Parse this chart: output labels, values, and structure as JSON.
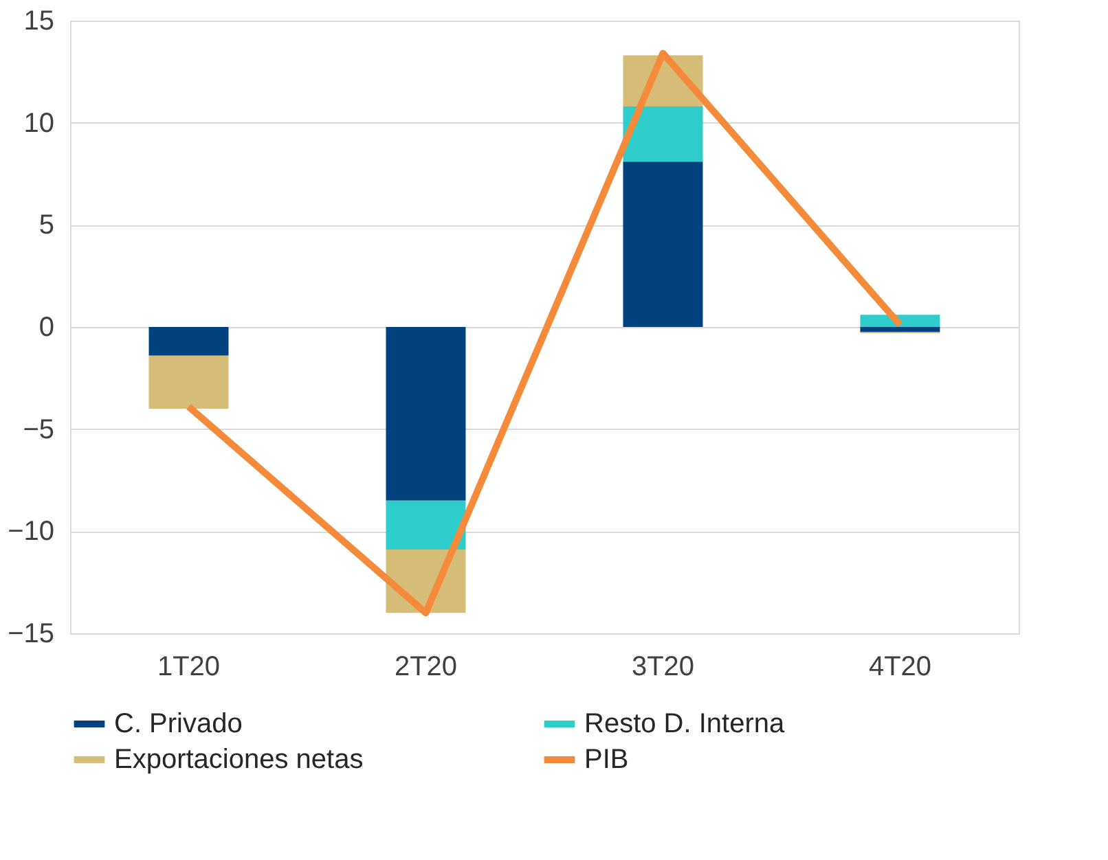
{
  "chart_data": {
    "type": "bar",
    "stacked": true,
    "categories": [
      "1T20",
      "2T20",
      "3T20",
      "4T20"
    ],
    "series": [
      {
        "name": "C. Privado",
        "color": "#00427f",
        "values": [
          -1.4,
          -8.5,
          8.1,
          -0.25
        ]
      },
      {
        "name": "Resto D. Interna",
        "color": "#2ecdcb",
        "values": [
          0,
          -2.4,
          2.7,
          0.6
        ]
      },
      {
        "name": "Exportaciones netas",
        "color": "#d6bd77",
        "values": [
          -2.6,
          -3.1,
          2.5,
          -0.05
        ]
      },
      {
        "name": "PIB",
        "type": "line",
        "color": "#f58a3a",
        "values": [
          -3.9,
          -14.0,
          13.4,
          0.1
        ]
      }
    ],
    "ylim": [
      -15,
      15
    ],
    "yticks": [
      -15,
      -10,
      -5,
      0,
      5,
      10,
      15
    ],
    "grid": "y",
    "legend": "bottom",
    "marker": "none",
    "line_style": "solid"
  }
}
